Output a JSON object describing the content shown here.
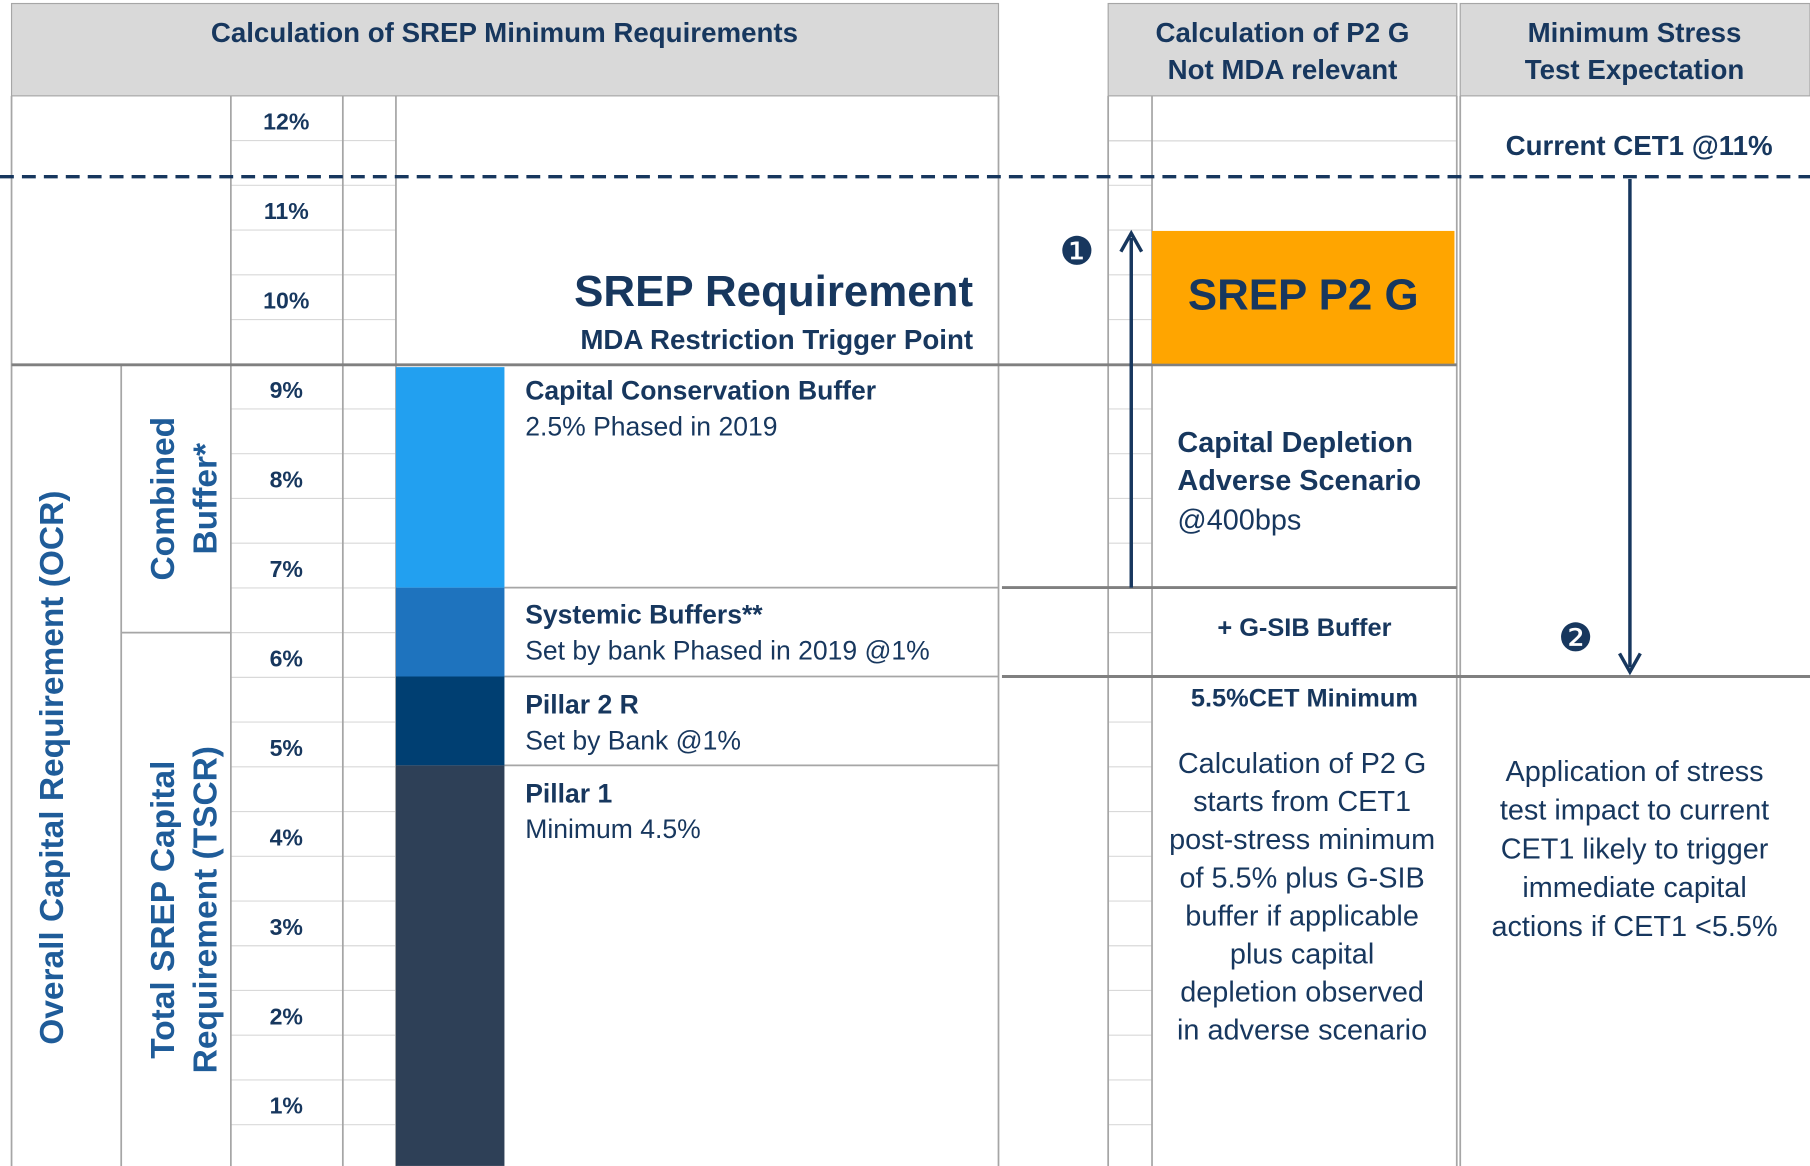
{
  "headers": {
    "left": "Calculation of SREP Minimum Requirements",
    "middle": [
      "Calculation of P2 G",
      "Not MDA relevant"
    ],
    "right": [
      "Minimum Stress",
      "Test Expectation"
    ]
  },
  "scale": [
    "12%",
    "11%",
    "10%",
    "9%",
    "8%",
    "7%",
    "6%",
    "5%",
    "4%",
    "3%",
    "2%",
    "1%"
  ],
  "srep": {
    "title": "SREP Requirement",
    "subtitle": "MDA Restriction Trigger Point"
  },
  "side_labels": {
    "ocr": "Overall Capital Requirement (OCR)",
    "combined": [
      "Combined",
      "Buffer*"
    ],
    "tscr": [
      "Total SREP Capital",
      "Requirement (TSCR)"
    ]
  },
  "blocks": [
    {
      "title": "Capital Conservation Buffer",
      "note": "2.5% Phased in 2019"
    },
    {
      "title": "Systemic Buffers**",
      "note": "Set by bank Phased in 2019 @1%"
    },
    {
      "title": "Pillar 2 R",
      "note": "Set by Bank @1%"
    },
    {
      "title": "Pillar 1",
      "note": "Minimum 4.5%"
    }
  ],
  "p2g": {
    "marker": "❶",
    "box": "SREP P2 G",
    "depletion": [
      "Capital Depletion",
      "Adverse Scenario"
    ],
    "depletion_note": "@400bps",
    "gsib": "+ G-SIB Buffer",
    "minimum": "5.5%CET Minimum",
    "explanation": [
      "Calculation of P2 G",
      "starts from CET1",
      "post-stress minimum",
      "of 5.5% plus G-SIB",
      "buffer if applicable",
      "plus capital",
      "depletion observed",
      "in adverse scenario"
    ]
  },
  "stress": {
    "current": "Current CET1 @11%",
    "marker": "❷",
    "explanation": [
      "Application of stress",
      "test impact to current",
      "CET1 likely to trigger",
      "immediate capital",
      "actions if CET1 <5.5%"
    ]
  }
}
